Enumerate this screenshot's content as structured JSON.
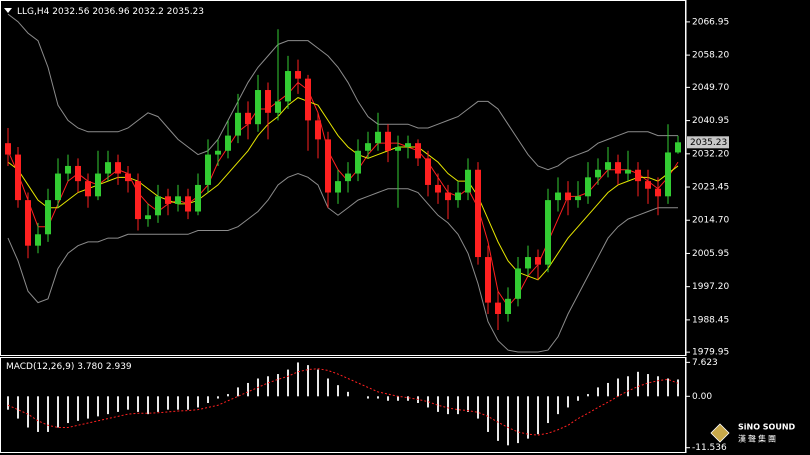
{
  "chart_data": [
    {
      "type": "candlestick",
      "symbol": "LLG,H4",
      "bull_color": "#33cc33",
      "bear_color": "#ff2020",
      "candles": [
        [
          2035,
          2039,
          2029,
          2032
        ],
        [
          2032,
          2034,
          2018,
          2020
        ],
        [
          2020,
          2022,
          2004.7,
          2008
        ],
        [
          2008,
          2014,
          2006,
          2011
        ],
        [
          2011,
          2023,
          2009,
          2020
        ],
        [
          2020,
          2031,
          2018,
          2027
        ],
        [
          2027,
          2032,
          2025,
          2029
        ],
        [
          2029,
          2031,
          2022,
          2025
        ],
        [
          2025,
          2027,
          2018,
          2021
        ],
        [
          2021,
          2033,
          2020,
          2027
        ],
        [
          2027,
          2033,
          2025,
          2030
        ],
        [
          2030,
          2032,
          2024,
          2027
        ],
        [
          2027,
          2029,
          2022,
          2025
        ],
        [
          2025,
          2027,
          2012,
          2015
        ],
        [
          2015,
          2019,
          2013,
          2016
        ],
        [
          2016,
          2024,
          2014,
          2021
        ],
        [
          2021,
          2023,
          2016,
          2019
        ],
        [
          2019,
          2024,
          2017,
          2021
        ],
        [
          2021,
          2023,
          2015,
          2017
        ],
        [
          2017,
          2027,
          2016,
          2024
        ],
        [
          2024,
          2036,
          2022,
          2032
        ],
        [
          2032,
          2036,
          2029,
          2033
        ],
        [
          2033,
          2041,
          2031,
          2037
        ],
        [
          2037,
          2048,
          2035,
          2043
        ],
        [
          2043,
          2046,
          2036,
          2040
        ],
        [
          2040,
          2053,
          2038,
          2049
        ],
        [
          2049,
          2051,
          2036,
          2043
        ],
        [
          2043,
          2065,
          2041,
          2046
        ],
        [
          2046,
          2058,
          2044,
          2054
        ],
        [
          2054,
          2057,
          2048,
          2052
        ],
        [
          2052,
          2053,
          2033,
          2041
        ],
        [
          2041,
          2043,
          2031,
          2036
        ],
        [
          2036,
          2038,
          2018,
          2022
        ],
        [
          2022,
          2028,
          2019,
          2025
        ],
        [
          2025,
          2030,
          2022,
          2027
        ],
        [
          2027,
          2036,
          2025,
          2033
        ],
        [
          2033,
          2038,
          2031,
          2035
        ],
        [
          2035,
          2043,
          2033,
          2038
        ],
        [
          2038,
          2040,
          2030,
          2033
        ],
        [
          2033,
          2037,
          2018,
          2034
        ],
        [
          2034,
          2037,
          2031,
          2035
        ],
        [
          2035,
          2036,
          2029,
          2031
        ],
        [
          2031,
          2033,
          2021,
          2024
        ],
        [
          2024,
          2027,
          2019,
          2022
        ],
        [
          2022,
          2024,
          2015,
          2020
        ],
        [
          2020,
          2025,
          2018,
          2022
        ],
        [
          2022,
          2031,
          2020,
          2028
        ],
        [
          2028,
          2030,
          2003,
          2005
        ],
        [
          2005,
          2008,
          1990,
          1993
        ],
        [
          1993,
          1996,
          1985.8,
          1990
        ],
        [
          1990,
          1997,
          1988,
          1994
        ],
        [
          1994,
          2005,
          1992,
          2002
        ],
        [
          2002,
          2008,
          2000,
          2005
        ],
        [
          2005,
          2007,
          1999,
          2003
        ],
        [
          2003,
          2023,
          2001,
          2020
        ],
        [
          2020,
          2026,
          2017,
          2022
        ],
        [
          2022,
          2025,
          2016,
          2020
        ],
        [
          2020,
          2025,
          2018,
          2021
        ],
        [
          2021,
          2030,
          2019,
          2026
        ],
        [
          2026,
          2031,
          2024,
          2028
        ],
        [
          2028,
          2034,
          2026,
          2030
        ],
        [
          2030,
          2032,
          2024,
          2027
        ],
        [
          2027,
          2033,
          2025,
          2028
        ],
        [
          2028,
          2030,
          2021,
          2025
        ],
        [
          2025,
          2028,
          2019,
          2023
        ],
        [
          2023,
          2026,
          2016,
          2021
        ],
        [
          2021,
          2040,
          2019,
          2032.56
        ],
        [
          2032.56,
          2036.96,
          2032.2,
          2035.23
        ]
      ],
      "series": [
        {
          "color": "#ff2020",
          "values": [
            2033,
            2027,
            2020,
            2013,
            2013,
            2019,
            2025,
            2027,
            2025,
            2024,
            2026,
            2028,
            2027,
            2022,
            2019,
            2017,
            2019,
            2020,
            2019,
            2021,
            2024,
            2030,
            2034,
            2038,
            2040,
            2044,
            2044,
            2046,
            2048,
            2051,
            2049,
            2043,
            2033,
            2028,
            2025,
            2028,
            2032,
            2035,
            2035,
            2035,
            2034,
            2033,
            2030,
            2026,
            2022,
            2021,
            2023,
            2018,
            2009,
            1996,
            1992,
            1995,
            2000,
            2003,
            2009,
            2015,
            2021,
            2021,
            2022,
            2025,
            2028,
            2028,
            2028,
            2027,
            2025,
            2023,
            2026,
            2030
          ]
        },
        {
          "color": "#e6e600",
          "values": [
            2030,
            2028,
            2024,
            2020,
            2018,
            2018,
            2020,
            2022,
            2023,
            2024,
            2025,
            2026,
            2026,
            2025,
            2023,
            2021,
            2020,
            2019,
            2019,
            2020,
            2022,
            2024,
            2027,
            2030,
            2033,
            2037,
            2040,
            2042,
            2045,
            2047,
            2046,
            2045,
            2041,
            2037,
            2034,
            2032,
            2031,
            2032,
            2033,
            2034,
            2034,
            2034,
            2032,
            2030,
            2027,
            2025,
            2025,
            2021,
            2015,
            2009,
            2004,
            2001,
            2000,
            1999,
            2002,
            2006,
            2010,
            2013,
            2016,
            2019,
            2022,
            2024,
            2025,
            2026,
            2026,
            2025,
            2027,
            2029
          ]
        },
        {
          "color": "#8c8c8c",
          "values": [
            2069,
            2067,
            2064,
            2062,
            2055,
            2045,
            2041,
            2039,
            2038,
            2038,
            2038,
            2038,
            2039,
            2041,
            2043,
            2042,
            2039,
            2036,
            2034,
            2032,
            2033,
            2036,
            2041,
            2046,
            2051,
            2055,
            2058,
            2061,
            2062,
            2062,
            2062,
            2060,
            2058,
            2055,
            2051,
            2046,
            2042,
            2040,
            2040,
            2040,
            2040,
            2039,
            2039,
            2040,
            2041,
            2042,
            2044,
            2046,
            2046,
            2044,
            2040,
            2036,
            2032,
            2029,
            2028,
            2029,
            2031,
            2032,
            2033,
            2035,
            2036,
            2037,
            2038,
            2038,
            2038,
            2037,
            2037,
            2037
          ]
        },
        {
          "color": "#8c8c8c",
          "values": [
            2010,
            2004,
            1996,
            1993,
            1994,
            2002,
            2006,
            2008,
            2009,
            2009,
            2010,
            2010,
            2011,
            2011,
            2011,
            2011,
            2011,
            2011,
            2011,
            2012,
            2012,
            2012,
            2012,
            2013,
            2015,
            2017,
            2020,
            2024,
            2026,
            2027,
            2026,
            2024,
            2018,
            2016,
            2018,
            2020,
            2021,
            2022,
            2023,
            2023,
            2023,
            2022,
            2019,
            2016,
            2014,
            2011,
            2006,
            1998,
            1988,
            1983,
            1980.5,
            1980,
            1980,
            1980,
            1980.5,
            1984,
            1990,
            1995,
            2000,
            2005,
            2010,
            2013,
            2015,
            2016,
            2017,
            2018,
            2018,
            2018
          ]
        }
      ],
      "ylim": [
        1979.2,
        2071.4
      ],
      "yticks": [
        2066.95,
        {
          "value": 2058.2,
          "label": "2058.20"
        },
        {
          "value": 2049.7,
          "label": "2049.70"
        },
        2040.95,
        {
          "value": 2032.2,
          "label": "2032.20"
        },
        2023.45,
        {
          "value": 2014.7,
          "label": "2014.70"
        },
        2005.95,
        {
          "value": 1997.2,
          "label": "1997.20"
        },
        1988.45,
        1979.95
      ]
    },
    {
      "type": "macd",
      "title": "MACD(12,26,9)",
      "histogram_color": "#e8e8e8",
      "signal_color": "#ff2020",
      "histogram": [
        -3,
        -5,
        -7,
        -8,
        -8,
        -7,
        -6,
        -5.5,
        -5,
        -4.5,
        -4,
        -3.5,
        -3,
        -3.5,
        -4,
        -3.5,
        -3,
        -3,
        -3,
        -2.5,
        -1.5,
        -0.5,
        0.5,
        2,
        3,
        4,
        4.5,
        5,
        6,
        7.6,
        7,
        6,
        4,
        2.5,
        1,
        0,
        -0.5,
        -0.5,
        -1,
        -1,
        -1,
        -1.5,
        -2.5,
        -3.5,
        -4,
        -4,
        -3.5,
        -5,
        -8,
        -10,
        -11,
        -10.5,
        -9.5,
        -8.5,
        -6,
        -4,
        -2.5,
        -1,
        0.5,
        2,
        3,
        4,
        4.5,
        5.5,
        5,
        4.5,
        4,
        3.78
      ],
      "signal": [
        -2,
        -3,
        -4,
        -5.5,
        -6.5,
        -7,
        -7,
        -6.5,
        -6,
        -5.5,
        -5,
        -4.5,
        -4,
        -3.8,
        -3.8,
        -3.7,
        -3.5,
        -3.3,
        -3.2,
        -3,
        -2.5,
        -2,
        -1,
        0,
        1,
        2,
        3,
        3.8,
        4.5,
        5.5,
        6,
        6.2,
        5.8,
        5,
        4,
        3,
        2,
        1,
        0.5,
        0,
        -0.3,
        -0.7,
        -1.2,
        -2,
        -2.6,
        -3,
        -3.2,
        -3.6,
        -4.5,
        -5.8,
        -7,
        -8,
        -8.5,
        -8.7,
        -8.3,
        -7.5,
        -6.5,
        -5,
        -3.8,
        -2.5,
        -1.3,
        0,
        1.2,
        2.2,
        3,
        3.5,
        3.8,
        2.939
      ],
      "readout_labels": {
        "main": "3.780",
        "signal": "2.939"
      },
      "ylim": [
        -12.5,
        8.6
      ],
      "yticks": [
        7.623,
        {
          "value": 0,
          "label": "0.00"
        },
        -11.536
      ]
    }
  ],
  "logo": {
    "name": "SiNO SOUND",
    "subtitle": "漢聲集團"
  }
}
